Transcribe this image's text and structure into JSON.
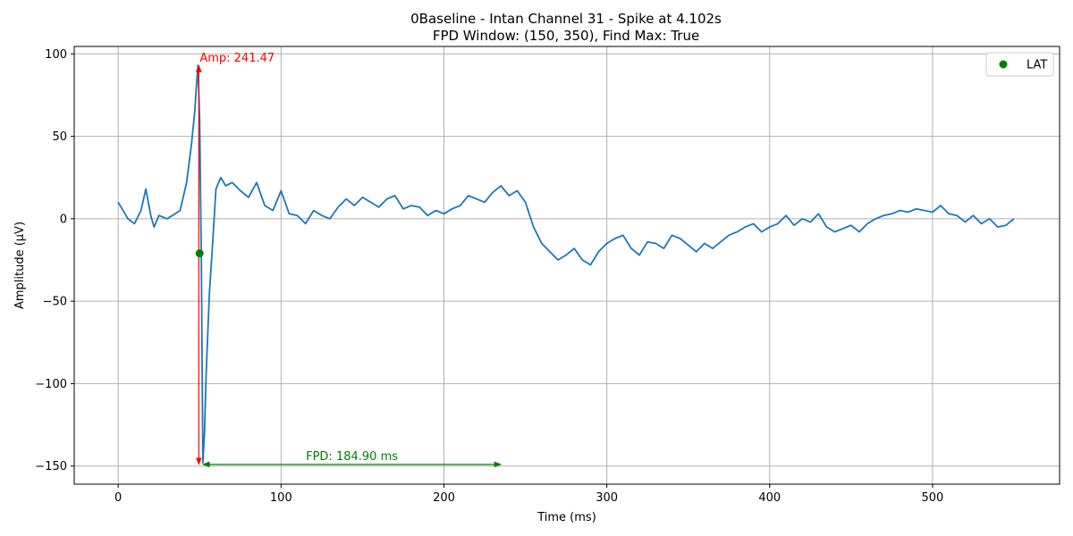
{
  "chart_data": {
    "type": "line",
    "title_line1": "0Baseline - Intan Channel 31 - Spike at 4.102s",
    "title_line2": "FPD Window: (150, 350), Find Max: True",
    "xlabel": "Time (ms)",
    "ylabel": "Amplitude (µV)",
    "xlim": [
      -27,
      578
    ],
    "ylim": [
      -161,
      104.5
    ],
    "xticks": [
      0,
      100,
      200,
      300,
      400,
      500
    ],
    "yticks": [
      100,
      50,
      0,
      -50,
      -100,
      -150
    ],
    "ytick_labels": [
      "100",
      "50",
      "0",
      "−50",
      "−100",
      "−150"
    ],
    "grid": true,
    "legend_position": "top-right",
    "series": [
      {
        "name": "",
        "color": "#1f77b4",
        "x": [
          0,
          3,
          6,
          10,
          14,
          17,
          20,
          22,
          25,
          30,
          35,
          38,
          42,
          45,
          47,
          48,
          49,
          50,
          51,
          52,
          53,
          54,
          56,
          58,
          60,
          63,
          66,
          70,
          75,
          80,
          85,
          90,
          95,
          100,
          105,
          110,
          115,
          120,
          125,
          130,
          135,
          140,
          145,
          150,
          155,
          160,
          165,
          170,
          175,
          180,
          185,
          190,
          195,
          200,
          205,
          210,
          215,
          220,
          225,
          230,
          235,
          240,
          245,
          250,
          255,
          260,
          265,
          270,
          275,
          280,
          285,
          290,
          295,
          300,
          305,
          310,
          315,
          320,
          325,
          330,
          335,
          340,
          345,
          350,
          355,
          360,
          365,
          370,
          375,
          380,
          385,
          390,
          395,
          400,
          405,
          410,
          415,
          420,
          425,
          430,
          435,
          440,
          445,
          450,
          455,
          460,
          465,
          470,
          475,
          480,
          485,
          490,
          495,
          500,
          505,
          510,
          515,
          520,
          525,
          530,
          535,
          540,
          545,
          550
        ],
        "y": [
          10,
          5,
          0,
          -3,
          5,
          18,
          2,
          -5,
          2,
          0,
          3,
          5,
          22,
          45,
          65,
          80,
          93,
          60,
          -20,
          -148,
          -130,
          -95,
          -45,
          -15,
          18,
          25,
          20,
          22,
          17,
          13,
          22,
          8,
          5,
          17,
          3,
          2,
          -3,
          5,
          2,
          0,
          7,
          12,
          8,
          13,
          10,
          7,
          12,
          14,
          6,
          8,
          7,
          2,
          5,
          3,
          6,
          8,
          14,
          12,
          10,
          16,
          20,
          14,
          17,
          10,
          -5,
          -15,
          -20,
          -25,
          -22,
          -18,
          -25,
          -28,
          -20,
          -15,
          -12,
          -10,
          -18,
          -22,
          -14,
          -15,
          -18,
          -10,
          -12,
          -16,
          -20,
          -15,
          -18,
          -14,
          -10,
          -8,
          -5,
          -3,
          -8,
          -5,
          -3,
          2,
          -4,
          0,
          -2,
          3,
          -5,
          -8,
          -6,
          -4,
          -8,
          -3,
          0,
          2,
          3,
          5,
          4,
          6,
          5,
          4,
          8,
          3,
          2,
          -2,
          2,
          -3,
          0,
          -5,
          -4,
          0
        ]
      }
    ],
    "lat_point": {
      "x": 50,
      "y": -21,
      "color": "#008000",
      "label": "LAT"
    },
    "amp_annotation": {
      "x": 49.5,
      "y_top": 93,
      "y_bottom": -149,
      "text": "Amp: 241.47",
      "color": "#ff0000"
    },
    "fpd_annotation": {
      "x_start": 52,
      "x_end": 235,
      "y": -149,
      "text": "FPD: 184.90 ms",
      "color": "#008000"
    }
  }
}
